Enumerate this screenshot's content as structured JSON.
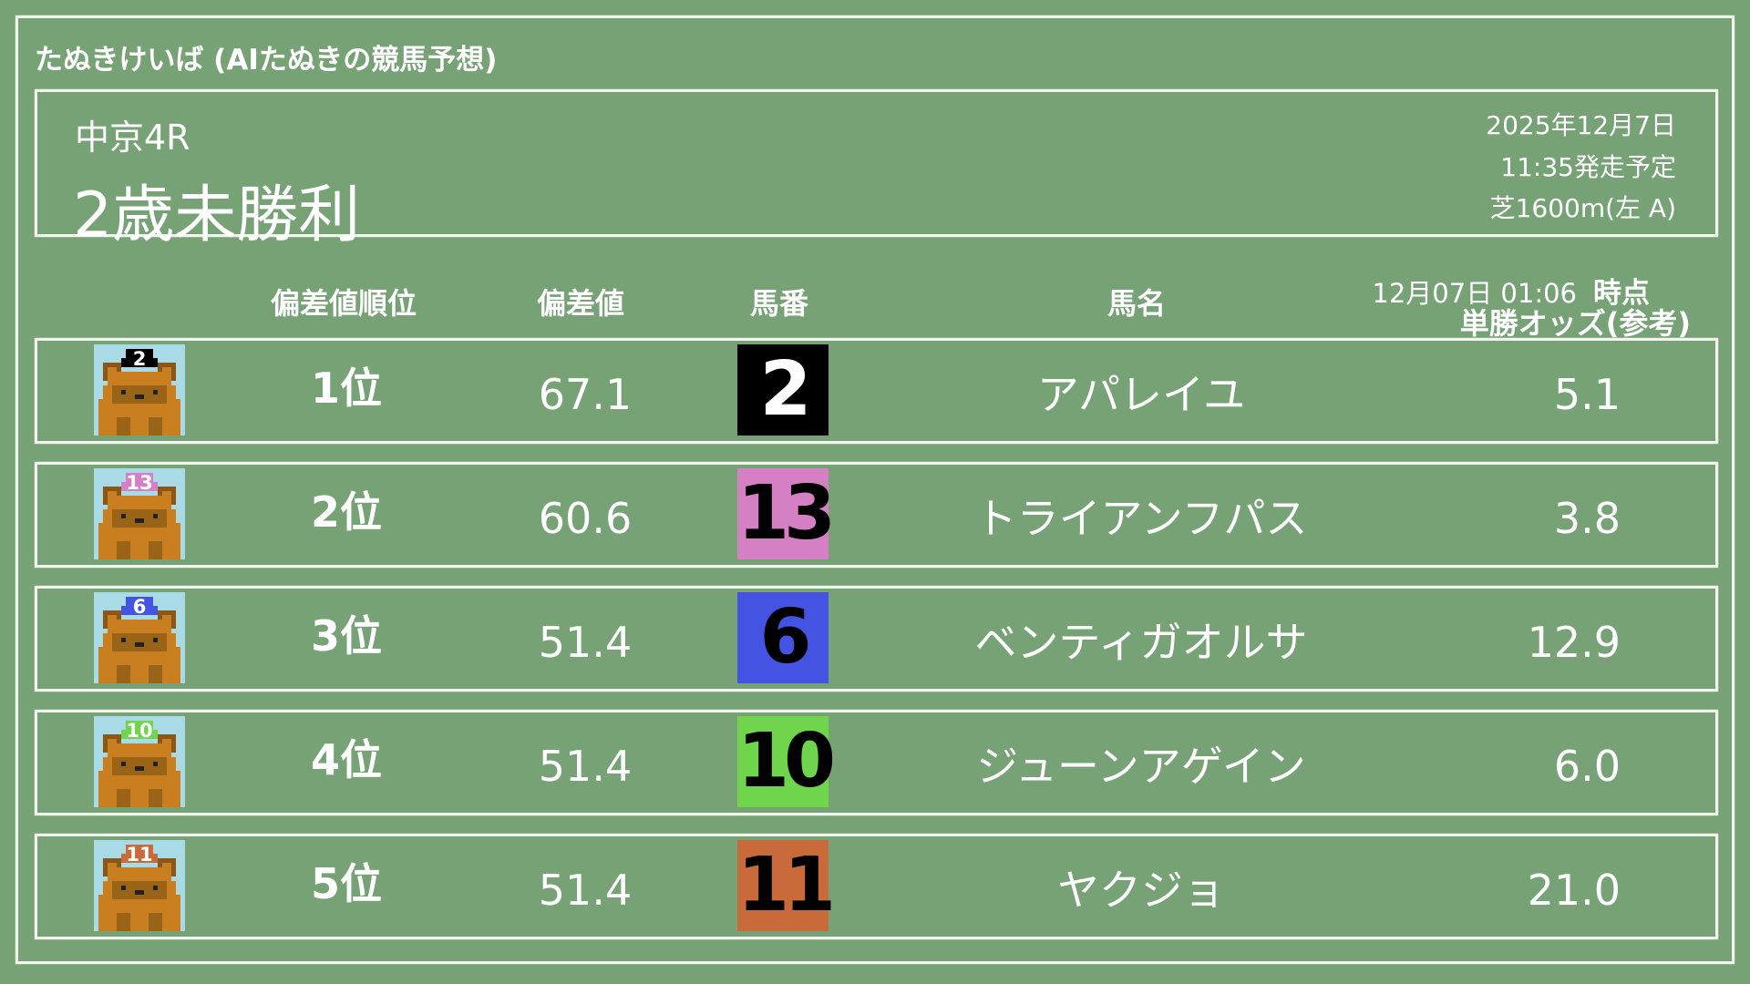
{
  "app_title": "たぬきけいば (AIたぬきの競馬予想)",
  "race": {
    "venue": "中京4R",
    "name": "2歳未勝利",
    "date": "2025年12月7日",
    "start": "11:35発走予定",
    "course": "芝1600m(左 A)"
  },
  "columns": {
    "rank": "偏差値順位",
    "score": "偏差値",
    "number": "馬番",
    "name": "馬名",
    "odds_time": "12月07日 01:06",
    "odds_time_suffix": "時点",
    "odds": "単勝オッズ(参考)"
  },
  "rows": [
    {
      "rank": "1位",
      "score": "67.1",
      "number": "2",
      "name": "アパレイユ",
      "odds": "5.1",
      "color": "#000000",
      "text_color": "#ffffff"
    },
    {
      "rank": "2位",
      "score": "60.6",
      "number": "13",
      "name": "トライアンフパス",
      "odds": "3.8",
      "color": "#d57fc4",
      "text_color": "#000000"
    },
    {
      "rank": "3位",
      "score": "51.4",
      "number": "6",
      "name": "ベンティガオルサ",
      "odds": "12.9",
      "color": "#4453e2",
      "text_color": "#000000"
    },
    {
      "rank": "4位",
      "score": "51.4",
      "number": "10",
      "name": "ジューンアゲイン",
      "odds": "6.0",
      "color": "#6fd54d",
      "text_color": "#000000"
    },
    {
      "rank": "5位",
      "score": "51.4",
      "number": "11",
      "name": "ヤクジョ",
      "odds": "21.0",
      "color": "#c96a3a",
      "text_color": "#000000"
    }
  ],
  "icon": "tanuki-jockey-icon"
}
